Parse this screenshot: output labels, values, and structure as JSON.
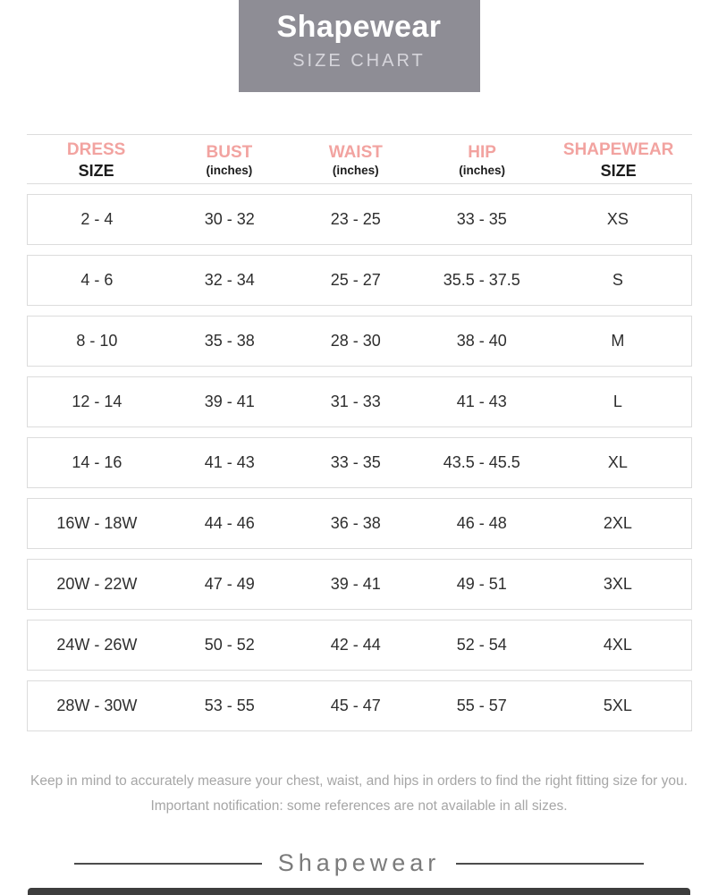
{
  "banner": {
    "title": "Shapewear",
    "subtitle": "SIZE CHART"
  },
  "chart_data": {
    "type": "table",
    "title": "Shapewear SIZE CHART",
    "columns": [
      {
        "label": "DRESS",
        "sublabel": "SIZE"
      },
      {
        "label": "BUST",
        "sublabel": "(inches)"
      },
      {
        "label": "WAIST",
        "sublabel": "(inches)"
      },
      {
        "label": "HIP",
        "sublabel": "(inches)"
      },
      {
        "label": "SHAPEWEAR",
        "sublabel": "SIZE"
      }
    ],
    "rows": [
      [
        "2 - 4",
        "30 - 32",
        "23 - 25",
        "33 - 35",
        "XS"
      ],
      [
        "4 - 6",
        "32 - 34",
        "25 - 27",
        "35.5 - 37.5",
        "S"
      ],
      [
        "8 - 10",
        "35 - 38",
        "28 - 30",
        "38 - 40",
        "M"
      ],
      [
        "12 - 14",
        "39 - 41",
        "31 - 33",
        "41 - 43",
        "L"
      ],
      [
        "14 - 16",
        "41 - 43",
        "33 - 35",
        "43.5 - 45.5",
        "XL"
      ],
      [
        "16W - 18W",
        "44 - 46",
        "36 - 38",
        "46 - 48",
        "2XL"
      ],
      [
        "20W - 22W",
        "47 - 49",
        "39 - 41",
        "49 - 51",
        "3XL"
      ],
      [
        "24W - 26W",
        "50 - 52",
        "42 - 44",
        "52 - 54",
        "4XL"
      ],
      [
        "28W - 30W",
        "53 - 55",
        "45 - 47",
        "55 - 57",
        "5XL"
      ]
    ]
  },
  "notes": {
    "line1": "Keep in mind to accurately measure your chest, waist, and hips in orders to find the right fitting size for you.",
    "line2": "Important notification: some references  are not available in all sizes."
  },
  "footer": {
    "brand": "Shapewear"
  },
  "colors": {
    "accent_pink": "#f2a3a0",
    "banner_gray": "#8e8d95",
    "row_border": "#dcdcdc",
    "text_dark": "#2e2e2e",
    "muted_gray": "#a6a6a6"
  }
}
